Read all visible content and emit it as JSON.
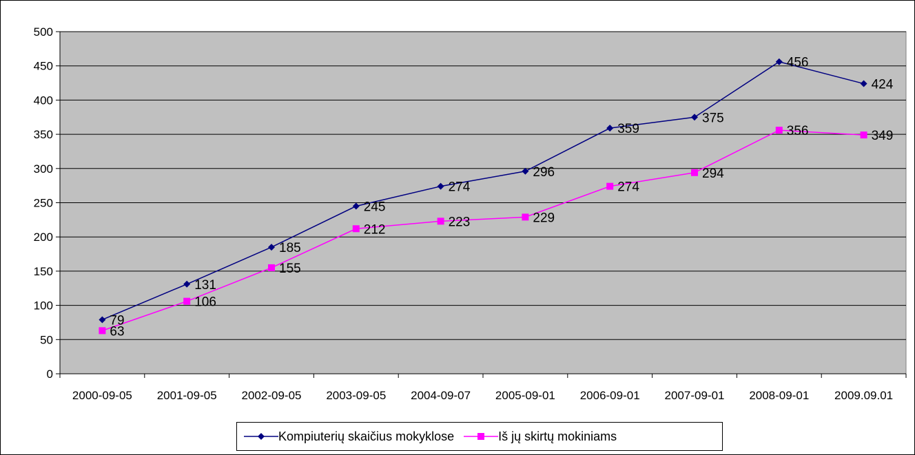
{
  "chart_data": {
    "type": "line",
    "categories": [
      "2000-09-05",
      "2001-09-05",
      "2002-09-05",
      "2003-09-05",
      "2004-09-07",
      "2005-09-01",
      "2006-09-01",
      "2007-09-01",
      "2008-09-01",
      "2009.09.01"
    ],
    "series": [
      {
        "name": "Kompiuterių skaičius mokyklose",
        "values": [
          79,
          131,
          185,
          245,
          274,
          296,
          359,
          375,
          456,
          424
        ],
        "color": "#000080",
        "marker": "diamond"
      },
      {
        "name": "Iš jų skirtų mokiniams",
        "values": [
          63,
          106,
          155,
          212,
          223,
          229,
          274,
          294,
          356,
          349
        ],
        "color": "#FF00FF",
        "marker": "square"
      }
    ],
    "ylim": [
      0,
      500
    ],
    "yticks": [
      0,
      50,
      100,
      150,
      200,
      250,
      300,
      350,
      400,
      450,
      500
    ],
    "grid": true,
    "plot_background": "#C0C0C0",
    "legend_position": "bottom",
    "title": "",
    "xlabel": "",
    "ylabel": ""
  }
}
